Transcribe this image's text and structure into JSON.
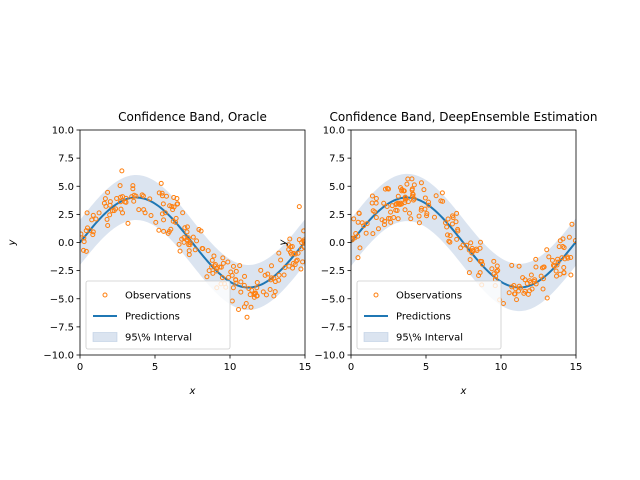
{
  "chart_data": [
    {
      "type": "scatter",
      "title": "Confidence Band, Oracle",
      "xlabel": "x",
      "ylabel": "y",
      "xlim": [
        0,
        15
      ],
      "ylim": [
        -10,
        10
      ],
      "xticks": [
        0,
        5,
        10,
        15
      ],
      "yticks": [
        -10.0,
        -7.5,
        -5.0,
        -2.5,
        0.0,
        2.5,
        5.0,
        7.5,
        10.0
      ],
      "ytick_labels": [
        "−10.0",
        "−7.5",
        "−5.0",
        "−2.5",
        "0.0",
        "2.5",
        "5.0",
        "7.5",
        "10.0"
      ],
      "grid": false,
      "legend_position": "lower-left",
      "prediction": {
        "amplitude": 4.0,
        "frequency": 0.42,
        "offset": 0.0
      },
      "band_halfwidth": 2.0,
      "noise_sigma": 1.0,
      "n_points": 200,
      "seed": 7,
      "series": [
        {
          "name": "Observations",
          "kind": "scatter",
          "color": "#ff7f0e"
        },
        {
          "name": "Predictions",
          "kind": "line",
          "color": "#1f77b4"
        },
        {
          "name": "95\\% Interval",
          "kind": "band",
          "color": "#b0c4de"
        }
      ]
    },
    {
      "type": "scatter",
      "title": "Confidence Band, DeepEnsemble Estimation",
      "xlabel": "x",
      "ylabel": "y",
      "xlim": [
        0,
        15
      ],
      "ylim": [
        -10,
        10
      ],
      "xticks": [
        0,
        5,
        10,
        15
      ],
      "yticks": [
        -10.0,
        -7.5,
        -5.0,
        -2.5,
        0.0,
        2.5,
        5.0,
        7.5,
        10.0
      ],
      "ytick_labels": [
        "−10.0",
        "−7.5",
        "−5.0",
        "−2.5",
        "0.0",
        "2.5",
        "5.0",
        "7.5",
        "10.0"
      ],
      "grid": false,
      "legend_position": "lower-left",
      "prediction": {
        "amplitude": 4.0,
        "frequency": 0.42,
        "offset": 0.0
      },
      "band_halfwidth": 2.1,
      "noise_sigma": 1.0,
      "n_points": 200,
      "seed": 13,
      "series": [
        {
          "name": "Observations",
          "kind": "scatter",
          "color": "#ff7f0e"
        },
        {
          "name": "Predictions",
          "kind": "line",
          "color": "#1f77b4"
        },
        {
          "name": "95\\% Interval",
          "kind": "band",
          "color": "#b0c4de"
        }
      ]
    }
  ]
}
